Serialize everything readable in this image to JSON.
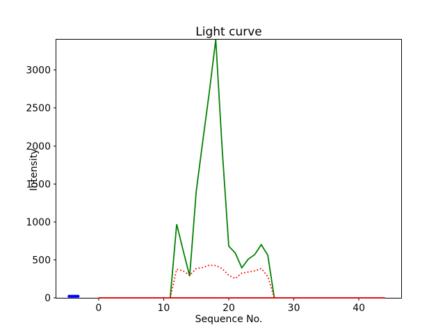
{
  "figure": {
    "title": "Light curve",
    "xlabel": "Sequence No.",
    "ylabel": "Intensity",
    "background": "#ffffff",
    "frame_color": "#000000"
  },
  "chart_data": {
    "type": "line",
    "title": "Light curve",
    "xlabel": "Sequence No.",
    "ylabel": "Intensity",
    "xlim": [
      -6.5,
      46.5
    ],
    "ylim": [
      0,
      3400
    ],
    "xticks": [
      0,
      10,
      20,
      30,
      40
    ],
    "yticks": [
      0,
      500,
      1000,
      1500,
      2000,
      2500,
      3000
    ],
    "grid": false,
    "legend": "none",
    "series": [
      {
        "name": "green-solid-curve",
        "color": "#008000",
        "style": "solid",
        "linewidth": 1.8,
        "x": [
          11,
          12,
          13,
          14,
          15,
          16,
          17,
          18,
          19,
          20,
          21,
          22,
          23,
          24,
          25,
          26,
          27
        ],
        "y": [
          0,
          970,
          620,
          285,
          1400,
          2060,
          2700,
          3400,
          1950,
          680,
          590,
          395,
          510,
          570,
          700,
          560,
          0
        ]
      },
      {
        "name": "red-dotted-curve",
        "color": "#ff0000",
        "style": "dotted",
        "linewidth": 1.8,
        "x": [
          11,
          12,
          13,
          14,
          15,
          16,
          17,
          18,
          19,
          20,
          21,
          22,
          23,
          24,
          25,
          26,
          27
        ],
        "y": [
          0,
          375,
          355,
          295,
          385,
          400,
          430,
          425,
          385,
          295,
          255,
          325,
          340,
          355,
          385,
          280,
          0
        ]
      },
      {
        "name": "red-solid-baseline",
        "color": "#ff0000",
        "style": "solid",
        "linewidth": 1.8,
        "x": [
          0,
          44
        ],
        "y": [
          0,
          0
        ]
      },
      {
        "name": "blue-segment",
        "color": "#0000ff",
        "style": "solid",
        "linewidth": 4,
        "x": [
          -4.55,
          -3.15
        ],
        "y": [
          20,
          20
        ]
      }
    ]
  }
}
